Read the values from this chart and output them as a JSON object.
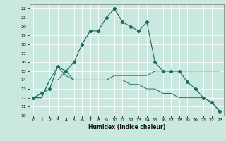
{
  "xlabel": "Humidex (Indice chaleur)",
  "xlim": [
    -0.5,
    23.5
  ],
  "ylim": [
    10,
    22.5
  ],
  "yticks": [
    10,
    11,
    12,
    13,
    14,
    15,
    16,
    17,
    18,
    19,
    20,
    21,
    22
  ],
  "xticks": [
    0,
    1,
    2,
    3,
    4,
    5,
    6,
    7,
    8,
    9,
    10,
    11,
    12,
    13,
    14,
    15,
    16,
    17,
    18,
    19,
    20,
    21,
    22,
    23
  ],
  "background_color": "#c8e8e0",
  "grid_color": "#ffffff",
  "line_color": "#1a6b5a",
  "line1_y": [
    12,
    12.5,
    13,
    15.5,
    15,
    16,
    18,
    19.5,
    19.5,
    21,
    22,
    20.5,
    20,
    19.5,
    20.5,
    16,
    15,
    15,
    15,
    13.8,
    13,
    12,
    11.5,
    10.5
  ],
  "line2_y": [
    12,
    12,
    14,
    14,
    15,
    14,
    14,
    14,
    14,
    14,
    14.5,
    14.5,
    14.5,
    14.5,
    14.5,
    15,
    15,
    15,
    15,
    15,
    15,
    15,
    15,
    15
  ],
  "line3_y": [
    12,
    12,
    14,
    15.5,
    14.5,
    14,
    14,
    14,
    14,
    14,
    14,
    14,
    13.5,
    13.5,
    13,
    13,
    12.5,
    12.5,
    12,
    12,
    12,
    12,
    11.5,
    10.5
  ]
}
